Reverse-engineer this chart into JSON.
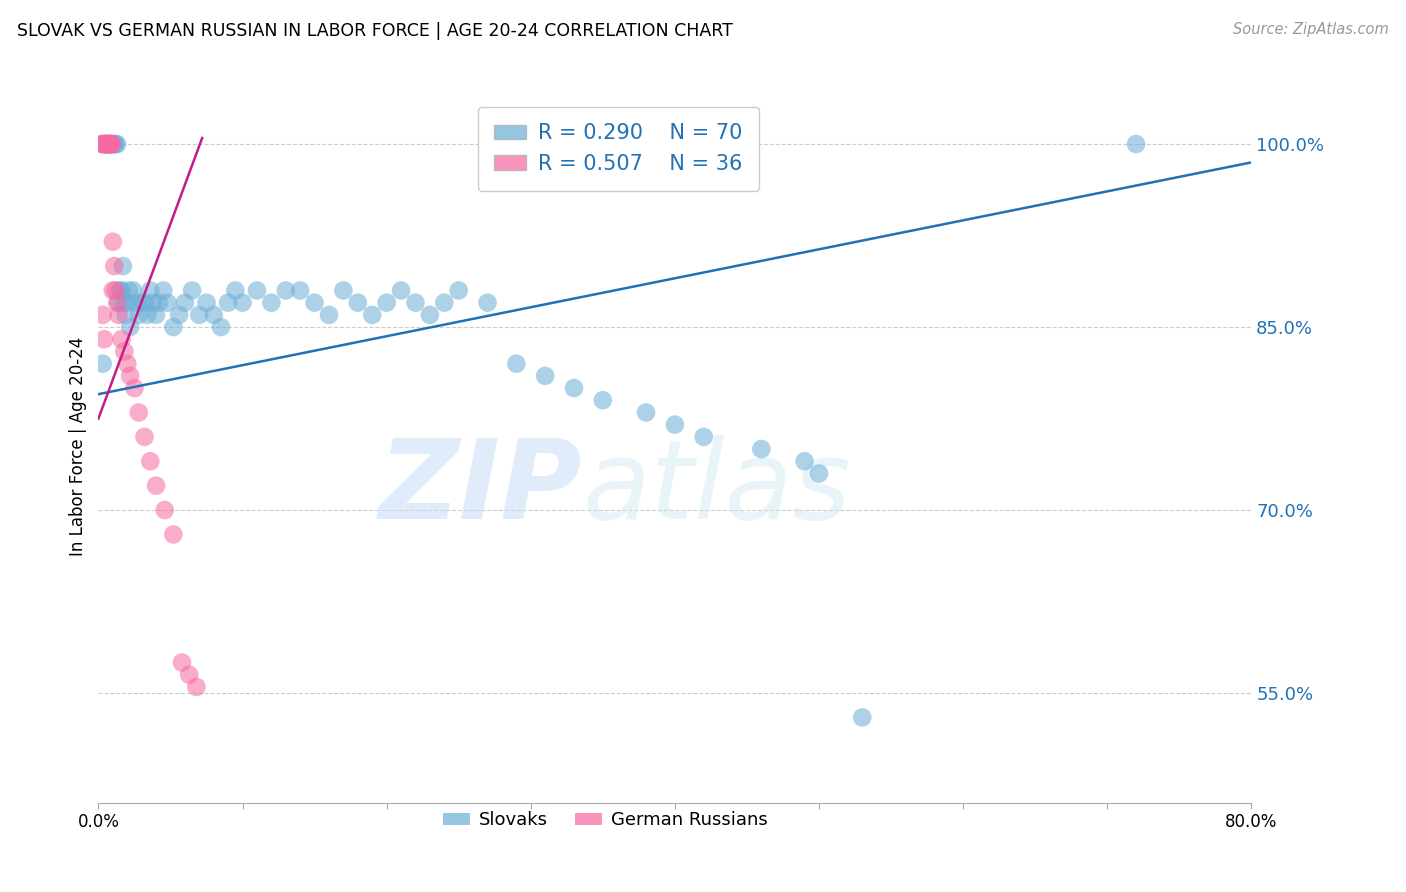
{
  "title": "SLOVAK VS GERMAN RUSSIAN IN LABOR FORCE | AGE 20-24 CORRELATION CHART",
  "source": "Source: ZipAtlas.com",
  "ylabel": "In Labor Force | Age 20-24",
  "xlim": [
    0.0,
    0.8
  ],
  "ylim": [
    0.46,
    1.045
  ],
  "yticks_right": [
    0.55,
    0.7,
    0.85,
    1.0
  ],
  "ytick_right_labels": [
    "55.0%",
    "70.0%",
    "85.0%",
    "100.0%"
  ],
  "blue_color": "#6baed6",
  "pink_color": "#f768a1",
  "blue_line_color": "#2171b5",
  "pink_line_color": "#c51b8a",
  "legend_blue_R": "R = 0.290",
  "legend_blue_N": "N = 70",
  "legend_pink_R": "R = 0.507",
  "legend_pink_N": "N = 36",
  "watermark_zip": "ZIP",
  "watermark_atlas": "atlas",
  "blue_x": [
    0.003,
    0.005,
    0.006,
    0.007,
    0.008,
    0.009,
    0.01,
    0.011,
    0.012,
    0.013,
    0.014,
    0.015,
    0.016,
    0.017,
    0.018,
    0.019,
    0.02,
    0.021,
    0.022,
    0.024,
    0.026,
    0.028,
    0.03,
    0.032,
    0.034,
    0.036,
    0.038,
    0.04,
    0.042,
    0.045,
    0.048,
    0.052,
    0.056,
    0.06,
    0.065,
    0.07,
    0.075,
    0.08,
    0.085,
    0.09,
    0.095,
    0.1,
    0.11,
    0.12,
    0.13,
    0.14,
    0.15,
    0.16,
    0.17,
    0.18,
    0.19,
    0.2,
    0.21,
    0.22,
    0.23,
    0.24,
    0.25,
    0.27,
    0.29,
    0.31,
    0.33,
    0.35,
    0.38,
    0.4,
    0.42,
    0.46,
    0.49,
    0.5,
    0.53,
    0.72
  ],
  "blue_y": [
    0.82,
    1.0,
    1.0,
    1.0,
    1.0,
    1.0,
    1.0,
    1.0,
    1.0,
    1.0,
    0.87,
    0.88,
    0.88,
    0.9,
    0.87,
    0.86,
    0.87,
    0.88,
    0.85,
    0.88,
    0.87,
    0.86,
    0.87,
    0.87,
    0.86,
    0.88,
    0.87,
    0.86,
    0.87,
    0.88,
    0.87,
    0.85,
    0.86,
    0.87,
    0.88,
    0.86,
    0.87,
    0.86,
    0.85,
    0.87,
    0.88,
    0.87,
    0.88,
    0.87,
    0.88,
    0.88,
    0.87,
    0.86,
    0.88,
    0.87,
    0.86,
    0.87,
    0.88,
    0.87,
    0.86,
    0.87,
    0.88,
    0.87,
    0.82,
    0.81,
    0.8,
    0.79,
    0.78,
    0.77,
    0.76,
    0.75,
    0.74,
    0.73,
    0.53,
    1.0
  ],
  "pink_x": [
    0.002,
    0.003,
    0.004,
    0.004,
    0.005,
    0.005,
    0.006,
    0.006,
    0.007,
    0.007,
    0.008,
    0.008,
    0.009,
    0.009,
    0.01,
    0.011,
    0.012,
    0.013,
    0.014,
    0.016,
    0.018,
    0.02,
    0.022,
    0.025,
    0.028,
    0.032,
    0.036,
    0.04,
    0.046,
    0.052,
    0.058,
    0.063,
    0.068,
    0.01,
    0.003,
    0.004
  ],
  "pink_y": [
    1.0,
    1.0,
    1.0,
    1.0,
    1.0,
    1.0,
    1.0,
    1.0,
    1.0,
    1.0,
    1.0,
    1.0,
    1.0,
    1.0,
    0.92,
    0.9,
    0.88,
    0.87,
    0.86,
    0.84,
    0.83,
    0.82,
    0.81,
    0.8,
    0.78,
    0.76,
    0.74,
    0.72,
    0.7,
    0.68,
    0.575,
    0.565,
    0.555,
    0.88,
    0.86,
    0.84
  ],
  "blue_trend_x": [
    0.0,
    0.8
  ],
  "blue_trend_y": [
    0.795,
    0.985
  ],
  "pink_trend_x": [
    0.0,
    0.072
  ],
  "pink_trend_y": [
    0.775,
    1.005
  ]
}
